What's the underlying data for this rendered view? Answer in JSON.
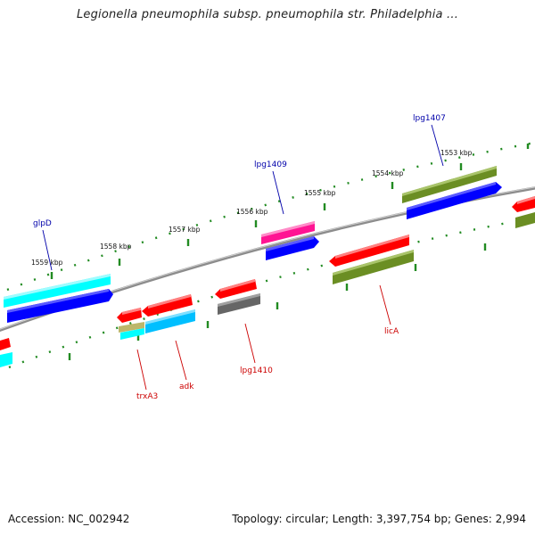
{
  "title": "Legionella pneumophila subsp. pneumophila str. Philadelphia ...",
  "footer": {
    "accession": "Accession: NC_002942",
    "topology": "Topology: circular; Length: 3,397,754 bp; Genes: 2,994"
  },
  "map": {
    "scale_labels": [
      "1559 kbp",
      "1558 kbp",
      "1557 kbp",
      "1556 kbp",
      "1555 kbp",
      "1554 kbp",
      "1553 kbp"
    ],
    "genes_top": [
      {
        "name": "glpD",
        "color": "#0000aa"
      },
      {
        "name": "lpg1409",
        "color": "#0000aa"
      },
      {
        "name": "lpg1407",
        "color": "#0000aa"
      }
    ],
    "genes_bottom": [
      {
        "name": "trxA3",
        "color": "#cc0000"
      },
      {
        "name": "adk",
        "color": "#cc0000"
      },
      {
        "name": "lpg1410",
        "color": "#cc0000"
      },
      {
        "name": "licA",
        "color": "#cc0000"
      }
    ],
    "colors": {
      "backbone": "#8c8c8c",
      "scale": "#228b22",
      "red": "#ff0000",
      "blue": "#0000ff",
      "cyan": "#00ffff",
      "olive": "#6b8e23",
      "magenta": "#ff1493",
      "gray": "#666666",
      "khaki": "#bdb76b"
    }
  }
}
